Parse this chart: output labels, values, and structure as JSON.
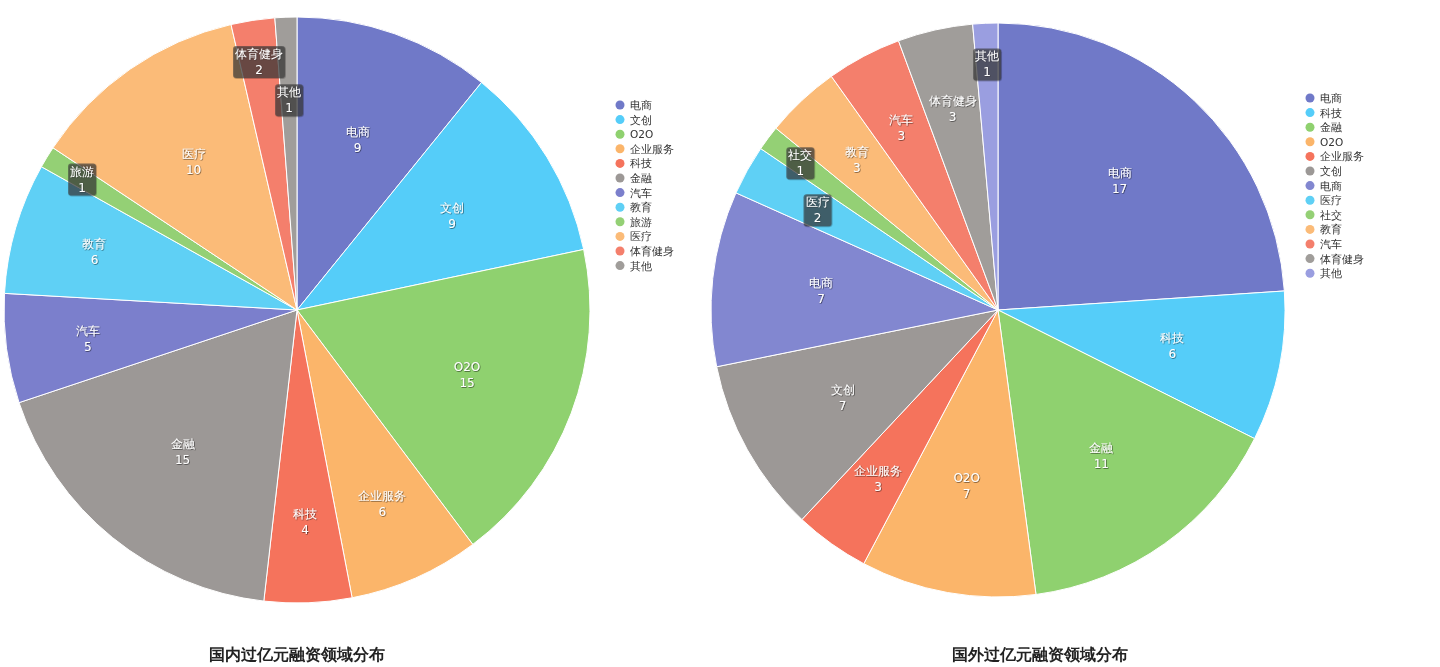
{
  "chart_data": [
    {
      "type": "pie",
      "title": "国内过亿元融资领域分布",
      "categories": [
        "电商",
        "文创",
        "O2O",
        "企业服务",
        "科技",
        "金融",
        "汽车",
        "教育",
        "旅游",
        "医疗",
        "体育健身",
        "其他"
      ],
      "values": [
        9,
        9,
        15,
        6,
        4,
        15,
        5,
        6,
        1,
        10,
        2,
        1
      ],
      "colors": [
        "#7079c8",
        "#55cdf9",
        "#8fd16f",
        "#fbb56a",
        "#f5735c",
        "#9c9896",
        "#7b7fcc",
        "#5fd0f5",
        "#94d075",
        "#fbbb78",
        "#f47f6c",
        "#a09d9a"
      ],
      "data_labels": true,
      "legend": "right"
    },
    {
      "type": "pie",
      "title": "国外过亿元融资领域分布",
      "categories": [
        "电商",
        "科技",
        "金融",
        "O2O",
        "企业服务",
        "文创",
        "电商",
        "医疗",
        "社交",
        "教育",
        "汽车",
        "体育健身",
        "其他"
      ],
      "values": [
        17,
        6,
        11,
        7,
        3,
        7,
        7,
        2,
        1,
        3,
        3,
        3,
        1
      ],
      "colors": [
        "#7079c8",
        "#55cdf9",
        "#8fd16f",
        "#fbb56a",
        "#f5735c",
        "#9c9896",
        "#8287d0",
        "#5fd0f5",
        "#94d075",
        "#fbbb78",
        "#f47f6c",
        "#a09d9a",
        "#9a9ee0"
      ],
      "data_labels": true,
      "legend": "right"
    }
  ]
}
